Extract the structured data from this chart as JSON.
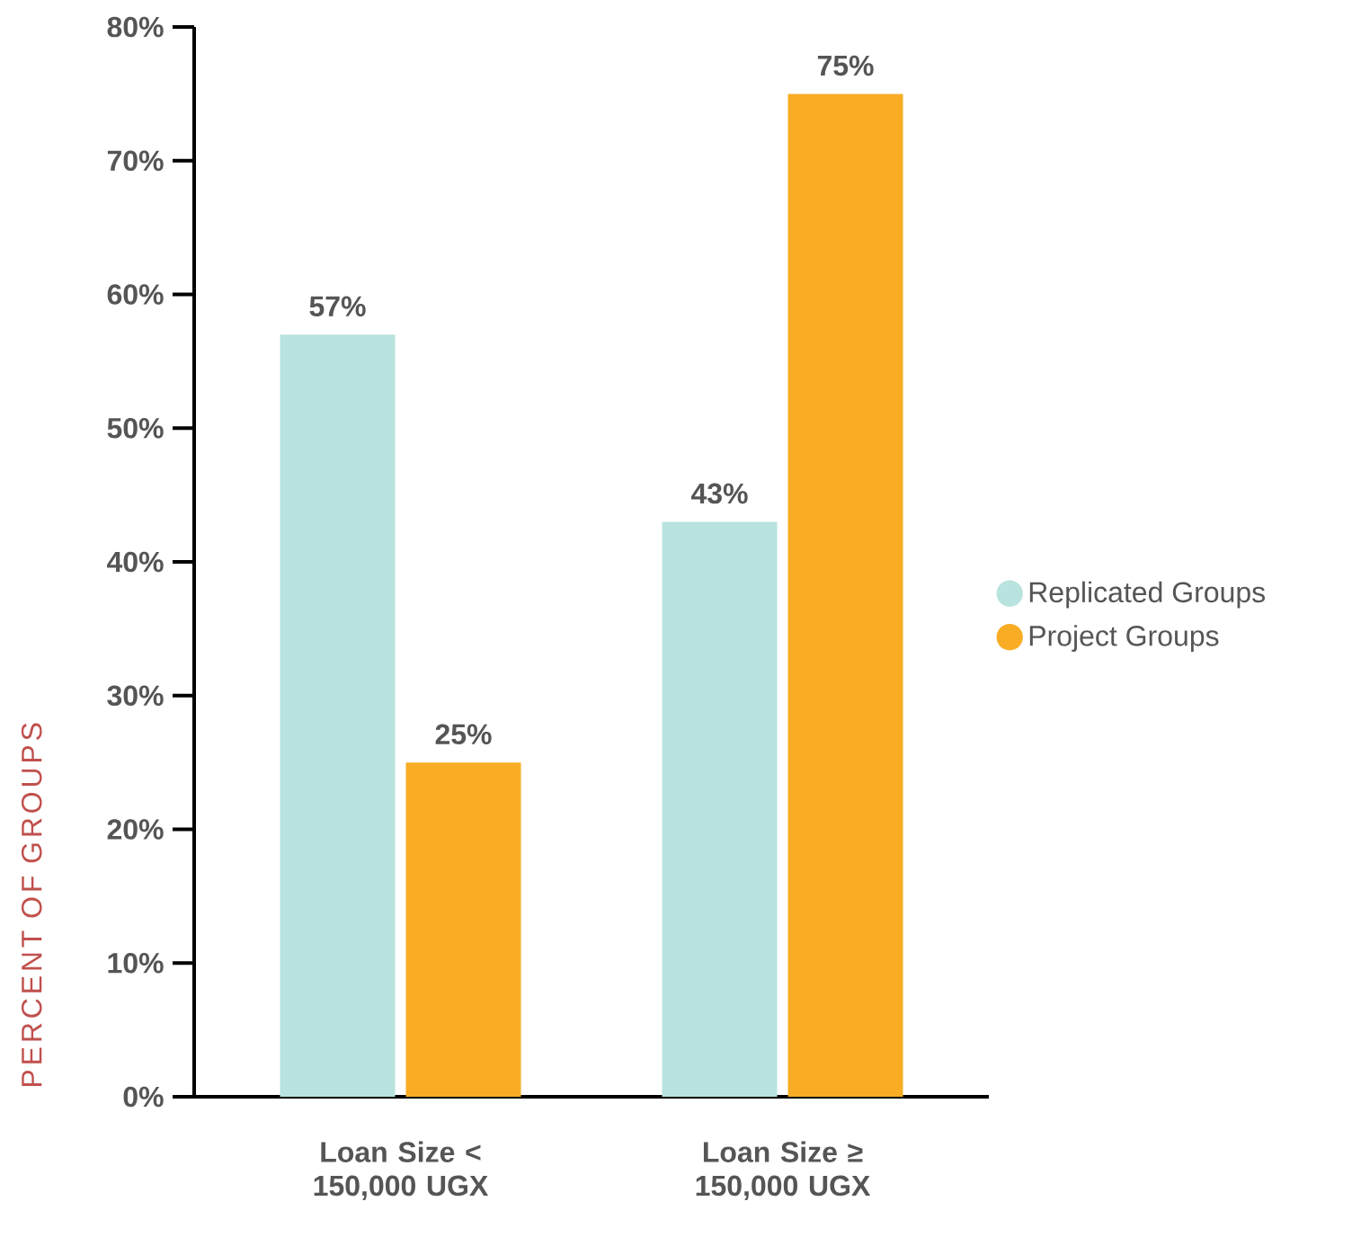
{
  "chart_data": {
    "type": "bar",
    "ylabel": "PERCENT OF GROUPS",
    "categories": [
      "Loan Size < 150,000 UGX",
      "Loan Size ≥ 150,000 UGX"
    ],
    "series": [
      {
        "name": "Replicated Groups",
        "color": "#b9e3df",
        "values": [
          57,
          43
        ],
        "value_labels": [
          "57%",
          "43%"
        ]
      },
      {
        "name": "Project Groups",
        "color": "#f8ad25",
        "values": [
          25,
          75
        ],
        "value_labels": [
          "25%",
          "75%"
        ]
      }
    ],
    "ylim": [
      0,
      80
    ],
    "yticks": [
      {
        "value": 0,
        "label": "0%"
      },
      {
        "value": 10,
        "label": "10%"
      },
      {
        "value": 20,
        "label": "20%"
      },
      {
        "value": 30,
        "label": "30%"
      },
      {
        "value": 40,
        "label": "40%"
      },
      {
        "value": 50,
        "label": "50%"
      },
      {
        "value": 60,
        "label": "60%"
      },
      {
        "value": 70,
        "label": "70%"
      },
      {
        "value": 80,
        "label": "80%"
      }
    ],
    "legend": "right"
  }
}
